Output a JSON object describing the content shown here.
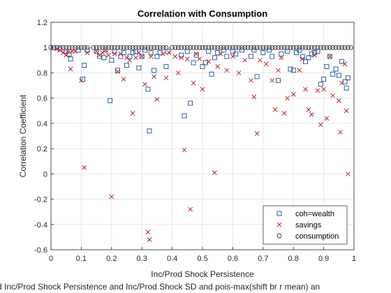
{
  "chart_data": {
    "type": "scatter",
    "title": "Correlation with Consumption",
    "xlabel": "Inc/Prod Shock Persistence",
    "ylabel": "Correlation Coefficient",
    "caption": "d Inc/Prod Shock Persistence and Inc/Prod Shock SD and pois-max(shift br r mean) an",
    "xlim": [
      0,
      1
    ],
    "ylim": [
      -0.6,
      1.2
    ],
    "xticks": [
      "0",
      "0.1",
      "0.2",
      "0.3",
      "0.4",
      "0.5",
      "0.6",
      "0.7",
      "0.8",
      "0.9",
      "1"
    ],
    "yticks": [
      "-0.6",
      "-0.4",
      "-0.2",
      "0",
      "0.2",
      "0.4",
      "0.6",
      "0.8",
      "1",
      "1.2"
    ],
    "grid": true,
    "legend_position": "bottom-right",
    "series": [
      {
        "name": "coh=wealth",
        "marker": "square",
        "color": "#2e5fa1",
        "points": [
          [
            0.01,
            1.0
          ],
          [
            0.03,
            0.99
          ],
          [
            0.05,
            0.97
          ],
          [
            0.06,
            0.95
          ],
          [
            0.065,
            0.91
          ],
          [
            0.09,
            0.98
          ],
          [
            0.105,
            0.75
          ],
          [
            0.11,
            0.86
          ],
          [
            0.12,
            0.98
          ],
          [
            0.15,
            0.97
          ],
          [
            0.16,
            0.93
          ],
          [
            0.175,
            0.92
          ],
          [
            0.18,
            0.98
          ],
          [
            0.195,
            0.58
          ],
          [
            0.2,
            0.9
          ],
          [
            0.21,
            0.97
          ],
          [
            0.22,
            0.82
          ],
          [
            0.23,
            0.93
          ],
          [
            0.24,
            0.96
          ],
          [
            0.25,
            0.86
          ],
          [
            0.26,
            0.93
          ],
          [
            0.27,
            0.96
          ],
          [
            0.28,
            0.97
          ],
          [
            0.29,
            0.84
          ],
          [
            0.3,
            0.93
          ],
          [
            0.31,
            0.98
          ],
          [
            0.32,
            0.67
          ],
          [
            0.325,
            0.34
          ],
          [
            0.33,
            0.96
          ],
          [
            0.34,
            0.82
          ],
          [
            0.35,
            0.93
          ],
          [
            0.36,
            0.96
          ],
          [
            0.38,
            0.85
          ],
          [
            0.385,
            0.97
          ],
          [
            0.43,
            0.94
          ],
          [
            0.44,
            0.46
          ],
          [
            0.45,
            0.97
          ],
          [
            0.46,
            0.56
          ],
          [
            0.47,
            0.88
          ],
          [
            0.48,
            0.94
          ],
          [
            0.5,
            0.85
          ],
          [
            0.51,
            0.88
          ],
          [
            0.52,
            0.97
          ],
          [
            0.53,
            0.79
          ],
          [
            0.54,
            0.92
          ],
          [
            0.55,
            0.96
          ],
          [
            0.57,
            0.98
          ],
          [
            0.58,
            0.93
          ],
          [
            0.6,
            0.97
          ],
          [
            0.61,
            0.95
          ],
          [
            0.63,
            0.98
          ],
          [
            0.66,
            0.93
          ],
          [
            0.67,
            0.98
          ],
          [
            0.68,
            0.77
          ],
          [
            0.7,
            0.96
          ],
          [
            0.72,
            0.98
          ],
          [
            0.73,
            0.93
          ],
          [
            0.75,
            0.74
          ],
          [
            0.76,
            0.95
          ],
          [
            0.78,
            0.97
          ],
          [
            0.79,
            0.83
          ],
          [
            0.8,
            0.82
          ],
          [
            0.81,
            0.96
          ],
          [
            0.82,
            0.98
          ],
          [
            0.83,
            0.93
          ],
          [
            0.84,
            0.89
          ],
          [
            0.85,
            0.92
          ],
          [
            0.86,
            0.95
          ],
          [
            0.87,
            0.96
          ],
          [
            0.88,
            0.97
          ],
          [
            0.89,
            0.71
          ],
          [
            0.9,
            0.75
          ],
          [
            0.91,
            0.85
          ],
          [
            0.92,
            0.93
          ],
          [
            0.93,
            0.79
          ],
          [
            0.94,
            0.83
          ],
          [
            0.95,
            0.78
          ],
          [
            0.96,
            0.89
          ],
          [
            0.97,
            0.73
          ],
          [
            0.975,
            0.68
          ],
          [
            0.98,
            0.76
          ]
        ]
      },
      {
        "name": "savings",
        "marker": "x",
        "color": "#c0262d",
        "points": [
          [
            0.02,
            0.99
          ],
          [
            0.03,
            0.98
          ],
          [
            0.04,
            0.96
          ],
          [
            0.05,
            0.94
          ],
          [
            0.055,
            0.97
          ],
          [
            0.065,
            0.83
          ],
          [
            0.07,
            0.97
          ],
          [
            0.08,
            0.97
          ],
          [
            0.1,
            0.74
          ],
          [
            0.11,
            0.05
          ],
          [
            0.12,
            0.96
          ],
          [
            0.15,
            0.97
          ],
          [
            0.16,
            0.94
          ],
          [
            0.17,
            0.96
          ],
          [
            0.18,
            0.98
          ],
          [
            0.19,
            0.94
          ],
          [
            0.2,
            -0.18
          ],
          [
            0.21,
            0.95
          ],
          [
            0.22,
            0.81
          ],
          [
            0.23,
            0.95
          ],
          [
            0.24,
            0.75
          ],
          [
            0.25,
            0.92
          ],
          [
            0.26,
            0.9
          ],
          [
            0.27,
            0.48
          ],
          [
            0.28,
            0.92
          ],
          [
            0.29,
            0.96
          ],
          [
            0.3,
            0.93
          ],
          [
            0.31,
            0.71
          ],
          [
            0.32,
            -0.46
          ],
          [
            0.325,
            -0.52
          ],
          [
            0.33,
            0.93
          ],
          [
            0.34,
            0.77
          ],
          [
            0.35,
            0.59
          ],
          [
            0.37,
            0.95
          ],
          [
            0.38,
            0.76
          ],
          [
            0.39,
            0.96
          ],
          [
            0.41,
            0.93
          ],
          [
            0.42,
            0.8
          ],
          [
            0.43,
            0.92
          ],
          [
            0.44,
            0.19
          ],
          [
            0.45,
            0.91
          ],
          [
            0.46,
            -0.28
          ],
          [
            0.47,
            0.72
          ],
          [
            0.48,
            0.95
          ],
          [
            0.49,
            0.91
          ],
          [
            0.5,
            0.67
          ],
          [
            0.52,
            0.89
          ],
          [
            0.54,
            0.01
          ],
          [
            0.55,
            0.85
          ],
          [
            0.56,
            0.95
          ],
          [
            0.58,
            0.82
          ],
          [
            0.6,
            0.93
          ],
          [
            0.62,
            0.8
          ],
          [
            0.64,
            0.9
          ],
          [
            0.66,
            0.74
          ],
          [
            0.67,
            0.61
          ],
          [
            0.68,
            0.32
          ],
          [
            0.69,
            0.9
          ],
          [
            0.71,
            0.87
          ],
          [
            0.73,
            0.74
          ],
          [
            0.74,
            0.51
          ],
          [
            0.75,
            0.82
          ],
          [
            0.76,
            0.92
          ],
          [
            0.77,
            0.48
          ],
          [
            0.78,
            0.6
          ],
          [
            0.8,
            0.63
          ],
          [
            0.82,
            0.82
          ],
          [
            0.83,
            0.91
          ],
          [
            0.84,
            0.67
          ],
          [
            0.85,
            0.51
          ],
          [
            0.86,
            0.47
          ],
          [
            0.87,
            0.94
          ],
          [
            0.88,
            0.66
          ],
          [
            0.89,
            0.39
          ],
          [
            0.9,
            0.67
          ],
          [
            0.91,
            0.44
          ],
          [
            0.92,
            0.93
          ],
          [
            0.93,
            0.62
          ],
          [
            0.94,
            -0.42
          ],
          [
            0.95,
            0.58
          ],
          [
            0.955,
            0.33
          ],
          [
            0.96,
            0.72
          ],
          [
            0.97,
            0.87
          ],
          [
            0.975,
            0.5
          ],
          [
            0.98,
            0.0
          ]
        ]
      },
      {
        "name": "consumption",
        "marker": "circle",
        "color": "#333333",
        "points": [
          [
            0.0,
            1.0
          ],
          [
            0.01,
            1.0
          ],
          [
            0.02,
            1.0
          ],
          [
            0.03,
            1.0
          ],
          [
            0.04,
            1.0
          ],
          [
            0.05,
            1.0
          ],
          [
            0.06,
            1.0
          ],
          [
            0.07,
            1.0
          ],
          [
            0.08,
            1.0
          ],
          [
            0.09,
            1.0
          ],
          [
            0.1,
            1.0
          ],
          [
            0.11,
            1.0
          ],
          [
            0.12,
            1.0
          ],
          [
            0.14,
            1.0
          ],
          [
            0.15,
            1.0
          ],
          [
            0.16,
            1.0
          ],
          [
            0.17,
            1.0
          ],
          [
            0.18,
            1.0
          ],
          [
            0.19,
            1.0
          ],
          [
            0.2,
            1.0
          ],
          [
            0.21,
            1.0
          ],
          [
            0.22,
            1.0
          ],
          [
            0.23,
            1.0
          ],
          [
            0.24,
            1.0
          ],
          [
            0.25,
            1.0
          ],
          [
            0.26,
            1.0
          ],
          [
            0.27,
            1.0
          ],
          [
            0.28,
            1.0
          ],
          [
            0.29,
            1.0
          ],
          [
            0.3,
            1.0
          ],
          [
            0.31,
            1.0
          ],
          [
            0.32,
            1.0
          ],
          [
            0.33,
            1.0
          ],
          [
            0.34,
            1.0
          ],
          [
            0.35,
            1.0
          ],
          [
            0.36,
            1.0
          ],
          [
            0.37,
            1.0
          ],
          [
            0.38,
            1.0
          ],
          [
            0.4,
            1.0
          ],
          [
            0.41,
            1.0
          ],
          [
            0.42,
            1.0
          ],
          [
            0.43,
            1.0
          ],
          [
            0.44,
            1.0
          ],
          [
            0.45,
            1.0
          ],
          [
            0.46,
            1.0
          ],
          [
            0.47,
            1.0
          ],
          [
            0.48,
            1.0
          ],
          [
            0.49,
            1.0
          ],
          [
            0.5,
            1.0
          ],
          [
            0.51,
            1.0
          ],
          [
            0.52,
            1.0
          ],
          [
            0.53,
            1.0
          ],
          [
            0.54,
            1.0
          ],
          [
            0.55,
            1.0
          ],
          [
            0.56,
            1.0
          ],
          [
            0.57,
            1.0
          ],
          [
            0.58,
            1.0
          ],
          [
            0.59,
            1.0
          ],
          [
            0.6,
            1.0
          ],
          [
            0.61,
            1.0
          ],
          [
            0.62,
            1.0
          ],
          [
            0.63,
            1.0
          ],
          [
            0.64,
            1.0
          ],
          [
            0.65,
            1.0
          ],
          [
            0.66,
            1.0
          ],
          [
            0.67,
            1.0
          ],
          [
            0.68,
            1.0
          ],
          [
            0.69,
            1.0
          ],
          [
            0.7,
            1.0
          ],
          [
            0.71,
            1.0
          ],
          [
            0.72,
            1.0
          ],
          [
            0.73,
            1.0
          ],
          [
            0.74,
            1.0
          ],
          [
            0.75,
            1.0
          ],
          [
            0.76,
            1.0
          ],
          [
            0.77,
            1.0
          ],
          [
            0.78,
            1.0
          ],
          [
            0.79,
            1.0
          ],
          [
            0.8,
            1.0
          ],
          [
            0.81,
            1.0
          ],
          [
            0.82,
            1.0
          ],
          [
            0.83,
            1.0
          ],
          [
            0.84,
            1.0
          ],
          [
            0.85,
            1.0
          ],
          [
            0.86,
            1.0
          ],
          [
            0.87,
            1.0
          ],
          [
            0.88,
            1.0
          ],
          [
            0.89,
            1.0
          ],
          [
            0.9,
            1.0
          ],
          [
            0.91,
            1.0
          ],
          [
            0.92,
            1.0
          ],
          [
            0.93,
            1.0
          ],
          [
            0.94,
            1.0
          ],
          [
            0.95,
            1.0
          ],
          [
            0.96,
            1.0
          ],
          [
            0.97,
            1.0
          ],
          [
            0.98,
            1.0
          ],
          [
            0.99,
            1.0
          ]
        ]
      }
    ]
  }
}
